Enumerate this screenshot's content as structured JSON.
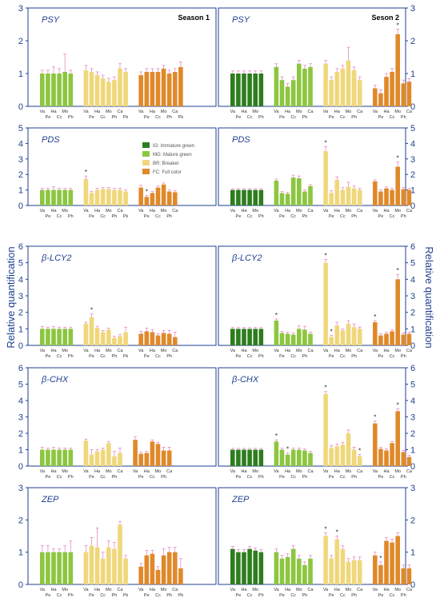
{
  "figure": {
    "ylabel": "Relative quantification",
    "season_labels": [
      "Season 1",
      "Seson 2"
    ],
    "categories": [
      "Va",
      "Pe",
      "Ha",
      "Cc",
      "Mo",
      "Ph",
      "Ca",
      "Pk"
    ],
    "legend": [
      {
        "label": "IG: Immature green",
        "color": "#2e7d1e"
      },
      {
        "label": "MG: Mature green",
        "color": "#8cc63f"
      },
      {
        "label": "BR: Breaker",
        "color": "#f0d77a"
      },
      {
        "label": "FC: Full color",
        "color": "#e0892a"
      }
    ],
    "colors": {
      "IG": "#2e7d1e",
      "MG": "#8cc63f",
      "BR": "#f0d77a",
      "FC": "#e0892a",
      "axis": "#1f3f8f",
      "error": "#e58cc4"
    }
  },
  "chart_data": [
    {
      "type": "bar",
      "gene": "PSY",
      "season": "Season 1",
      "ylim": [
        0,
        3
      ],
      "yticks": [
        0,
        1,
        2,
        3
      ],
      "stages": [
        {
          "stage": "MG",
          "values": [
            1.0,
            1.0,
            1.0,
            1.0,
            1.05,
            1.0
          ],
          "errors": [
            0.1,
            0.1,
            0.2,
            0.15,
            0.55,
            0.1
          ],
          "stars": []
        },
        {
          "stage": "BR",
          "values": [
            1.1,
            1.05,
            0.95,
            0.85,
            0.75,
            0.8,
            1.15,
            1.05
          ],
          "errors": [
            0.15,
            0.1,
            0.1,
            0.1,
            0.1,
            0.1,
            0.15,
            0.1
          ],
          "stars": []
        },
        {
          "stage": "FC",
          "values": [
            0.95,
            1.05,
            1.05,
            1.05,
            1.15,
            1.0,
            1.05,
            1.2
          ],
          "errors": [
            0.1,
            0.1,
            0.1,
            0.1,
            0.1,
            0.1,
            0.1,
            0.15
          ],
          "stars": []
        }
      ]
    },
    {
      "type": "bar",
      "gene": "PSY",
      "season": "Seson 2",
      "ylim": [
        0,
        3
      ],
      "yticks": [
        0,
        1,
        2,
        3
      ],
      "stages": [
        {
          "stage": "IG",
          "values": [
            1.0,
            1.0,
            1.0,
            1.0,
            1.0,
            1.0
          ],
          "errors": [
            0.08,
            0.08,
            0.08,
            0.08,
            0.08,
            0.08
          ],
          "stars": []
        },
        {
          "stage": "MG",
          "values": [
            1.2,
            0.8,
            0.6,
            0.8,
            1.3,
            1.15,
            1.2
          ],
          "errors": [
            0.1,
            0.1,
            0.1,
            0.1,
            0.1,
            0.1,
            0.1
          ],
          "stars": []
        },
        {
          "stage": "BR",
          "values": [
            1.3,
            0.8,
            1.05,
            1.15,
            1.4,
            1.1,
            0.8
          ],
          "errors": [
            0.1,
            0.1,
            0.1,
            0.1,
            0.4,
            0.1,
            0.1
          ],
          "stars": []
        },
        {
          "stage": "FC",
          "values": [
            0.55,
            0.4,
            0.9,
            1.05,
            2.2,
            0.7,
            0.75
          ],
          "errors": [
            0.1,
            0.1,
            0.1,
            0.1,
            0.15,
            0.1,
            0.1
          ],
          "stars": [
            4
          ]
        }
      ]
    },
    {
      "type": "bar",
      "gene": "PDS",
      "season": "Season 1",
      "ylim": [
        0,
        5
      ],
      "yticks": [
        0,
        1,
        2,
        3,
        4,
        5
      ],
      "stages": [
        {
          "stage": "MG",
          "values": [
            1.0,
            1.0,
            1.0,
            1.0,
            1.0,
            1.0
          ],
          "errors": [
            0.1,
            0.1,
            0.2,
            0.1,
            0.1,
            0.1
          ],
          "stars": []
        },
        {
          "stage": "BR",
          "values": [
            1.7,
            0.8,
            1.0,
            1.05,
            1.05,
            1.0,
            1.0,
            0.9
          ],
          "errors": [
            0.2,
            0.1,
            0.1,
            0.1,
            0.1,
            0.1,
            0.1,
            0.1
          ],
          "stars": [
            0
          ]
        },
        {
          "stage": "FC",
          "values": [
            1.15,
            0.55,
            0.8,
            1.15,
            1.35,
            0.9,
            0.85
          ],
          "errors": [
            0.15,
            0.1,
            0.1,
            0.1,
            0.1,
            0.1,
            0.1
          ],
          "stars": [
            1
          ]
        }
      ]
    },
    {
      "type": "bar",
      "gene": "PDS",
      "season": "Seson 2",
      "ylim": [
        0,
        5
      ],
      "yticks": [
        0,
        1,
        2,
        3,
        4,
        5
      ],
      "stages": [
        {
          "stage": "IG",
          "values": [
            1.0,
            1.0,
            1.0,
            1.0,
            1.0,
            1.0
          ],
          "errors": [
            0.08,
            0.08,
            0.08,
            0.08,
            0.08,
            0.08
          ],
          "stars": []
        },
        {
          "stage": "MG",
          "values": [
            1.6,
            0.8,
            0.75,
            1.8,
            1.75,
            0.9,
            1.25
          ],
          "errors": [
            0.1,
            0.1,
            0.1,
            0.15,
            0.15,
            0.1,
            0.1
          ],
          "stars": []
        },
        {
          "stage": "BR",
          "values": [
            3.5,
            0.8,
            1.65,
            1.0,
            1.2,
            1.1,
            1.0
          ],
          "errors": [
            0.3,
            0.15,
            0.2,
            0.15,
            0.3,
            0.15,
            0.1
          ],
          "stars": [
            0
          ]
        },
        {
          "stage": "FC",
          "values": [
            1.55,
            0.9,
            1.1,
            1.0,
            2.5,
            1.05,
            1.0
          ],
          "errors": [
            0.1,
            0.1,
            0.1,
            0.1,
            0.3,
            0.1,
            0.1
          ],
          "stars": [
            4
          ]
        }
      ]
    },
    {
      "type": "bar",
      "gene": "β-LCY2",
      "season": "Season 1",
      "ylim": [
        0,
        6
      ],
      "yticks": [
        0,
        1,
        2,
        3,
        4,
        5,
        6
      ],
      "stages": [
        {
          "stage": "MG",
          "values": [
            1.0,
            1.0,
            1.0,
            1.0,
            1.0,
            1.0
          ],
          "errors": [
            0.15,
            0.1,
            0.15,
            0.1,
            0.1,
            0.1
          ],
          "stars": []
        },
        {
          "stage": "BR",
          "values": [
            1.3,
            1.7,
            1.05,
            0.8,
            0.95,
            0.45,
            0.55,
            0.8
          ],
          "errors": [
            0.1,
            0.2,
            0.1,
            0.1,
            0.1,
            0.1,
            0.1,
            0.3
          ],
          "stars": [
            1
          ]
        },
        {
          "stage": "FC",
          "values": [
            0.7,
            0.85,
            0.8,
            0.6,
            0.75,
            0.7,
            0.5
          ],
          "errors": [
            0.15,
            0.2,
            0.15,
            0.1,
            0.15,
            0.2,
            0.3
          ],
          "stars": []
        }
      ]
    },
    {
      "type": "bar",
      "gene": "β-LCY2",
      "season": "Seson 2",
      "ylim": [
        0,
        6
      ],
      "yticks": [
        0,
        1,
        2,
        3,
        4,
        5,
        6
      ],
      "stages": [
        {
          "stage": "IG",
          "values": [
            1.0,
            1.0,
            1.0,
            1.0,
            1.0,
            1.0
          ],
          "errors": [
            0.08,
            0.08,
            0.08,
            0.08,
            0.08,
            0.08
          ],
          "stars": []
        },
        {
          "stage": "MG",
          "values": [
            1.5,
            0.75,
            0.7,
            0.65,
            1.0,
            0.95,
            0.7
          ],
          "errors": [
            0.1,
            0.1,
            0.1,
            0.1,
            0.2,
            0.2,
            0.1
          ],
          "stars": [
            0
          ]
        },
        {
          "stage": "BR",
          "values": [
            5.0,
            0.5,
            1.2,
            0.9,
            1.3,
            1.1,
            1.0
          ],
          "errors": [
            0.2,
            0.1,
            0.2,
            0.1,
            0.2,
            0.2,
            0.1
          ],
          "stars": [
            0,
            1
          ]
        },
        {
          "stage": "FC",
          "values": [
            1.4,
            0.6,
            0.7,
            0.85,
            4.0,
            0.65,
            0.7
          ],
          "errors": [
            0.1,
            0.1,
            0.1,
            0.1,
            0.3,
            0.1,
            0.1
          ],
          "stars": [
            0,
            4
          ]
        }
      ]
    },
    {
      "type": "bar",
      "gene": "β-CHX",
      "season": "Season 1",
      "ylim": [
        0,
        6
      ],
      "yticks": [
        0,
        1,
        2,
        3,
        4,
        5,
        6
      ],
      "stages": [
        {
          "stage": "MG",
          "values": [
            1.0,
            1.0,
            1.0,
            1.0,
            1.0,
            1.0
          ],
          "errors": [
            0.15,
            0.1,
            0.15,
            0.1,
            0.1,
            0.1
          ],
          "stars": []
        },
        {
          "stage": "BR",
          "values": [
            1.55,
            0.7,
            0.9,
            1.0,
            1.4,
            0.6,
            0.8
          ],
          "errors": [
            0.1,
            0.3,
            0.1,
            0.1,
            0.1,
            0.3,
            0.3
          ],
          "stars": []
        },
        {
          "stage": "FC",
          "values": [
            1.6,
            0.75,
            0.8,
            1.5,
            1.35,
            0.95,
            0.95
          ],
          "errors": [
            0.2,
            0.1,
            0.1,
            0.1,
            0.1,
            0.2,
            0.2
          ],
          "stars": []
        }
      ]
    },
    {
      "type": "bar",
      "gene": "β-CHX",
      "season": "Seson 2",
      "ylim": [
        0,
        6
      ],
      "yticks": [
        0,
        1,
        2,
        3,
        4,
        5,
        6
      ],
      "stages": [
        {
          "stage": "IG",
          "values": [
            1.0,
            1.0,
            1.0,
            1.0,
            1.0,
            1.0
          ],
          "errors": [
            0.08,
            0.08,
            0.08,
            0.08,
            0.08,
            0.08
          ],
          "stars": []
        },
        {
          "stage": "MG",
          "values": [
            1.5,
            1.0,
            0.7,
            1.0,
            1.0,
            0.95,
            0.8
          ],
          "errors": [
            0.1,
            0.1,
            0.1,
            0.1,
            0.1,
            0.1,
            0.1
          ],
          "stars": [
            0,
            2
          ]
        },
        {
          "stage": "BR",
          "values": [
            4.4,
            1.1,
            1.2,
            1.3,
            2.0,
            1.0,
            0.6
          ],
          "errors": [
            0.15,
            0.15,
            0.15,
            0.15,
            0.2,
            0.15,
            0.1
          ],
          "stars": [
            0,
            6
          ]
        },
        {
          "stage": "FC",
          "values": [
            2.6,
            1.05,
            0.95,
            1.4,
            3.35,
            0.85,
            0.55
          ],
          "errors": [
            0.15,
            0.1,
            0.1,
            0.1,
            0.15,
            0.1,
            0.1
          ],
          "stars": [
            0,
            4
          ]
        }
      ]
    },
    {
      "type": "bar",
      "gene": "ZEP",
      "season": "Season 1",
      "ylim": [
        0,
        3
      ],
      "yticks": [
        0,
        1,
        2,
        3
      ],
      "stages": [
        {
          "stage": "MG",
          "values": [
            1.0,
            1.0,
            1.0,
            1.0,
            1.0,
            1.0
          ],
          "errors": [
            0.2,
            0.2,
            0.1,
            0.1,
            0.2,
            0.35
          ],
          "stars": []
        },
        {
          "stage": "BR",
          "values": [
            1.0,
            1.2,
            1.15,
            0.8,
            1.15,
            1.1,
            1.85,
            0.8
          ],
          "errors": [
            0.2,
            0.25,
            0.6,
            0.2,
            0.2,
            0.2,
            0.1,
            0.1
          ],
          "stars": []
        },
        {
          "stage": "FC",
          "values": [
            0.55,
            0.9,
            0.95,
            0.45,
            0.9,
            1.0,
            1.0,
            0.5
          ],
          "errors": [
            0.1,
            0.15,
            0.1,
            0.1,
            0.2,
            0.15,
            0.15,
            0.3
          ],
          "stars": []
        }
      ]
    },
    {
      "type": "bar",
      "gene": "ZEP",
      "season": "Seson 2",
      "ylim": [
        0,
        3
      ],
      "yticks": [
        0,
        1,
        2,
        3
      ],
      "stages": [
        {
          "stage": "IG",
          "values": [
            1.1,
            1.0,
            1.0,
            1.1,
            1.05,
            1.0
          ],
          "errors": [
            0.08,
            0.08,
            0.08,
            0.08,
            0.08,
            0.08
          ],
          "stars": []
        },
        {
          "stage": "MG",
          "values": [
            1.0,
            0.8,
            0.85,
            1.1,
            0.8,
            0.6,
            0.8
          ],
          "errors": [
            0.1,
            0.1,
            0.1,
            0.1,
            0.1,
            0.1,
            0.1
          ],
          "stars": []
        },
        {
          "stage": "BR",
          "values": [
            1.5,
            0.8,
            1.4,
            1.1,
            0.7,
            0.75,
            0.75
          ],
          "errors": [
            0.1,
            0.1,
            0.1,
            0.1,
            0.1,
            0.1,
            0.1
          ],
          "stars": [
            0,
            2
          ]
        },
        {
          "stage": "FC",
          "values": [
            0.9,
            0.6,
            1.35,
            1.3,
            1.5,
            0.5,
            0.5
          ],
          "errors": [
            0.1,
            0.1,
            0.1,
            0.1,
            0.1,
            0.1,
            0.1
          ],
          "stars": [
            1
          ]
        }
      ]
    }
  ]
}
